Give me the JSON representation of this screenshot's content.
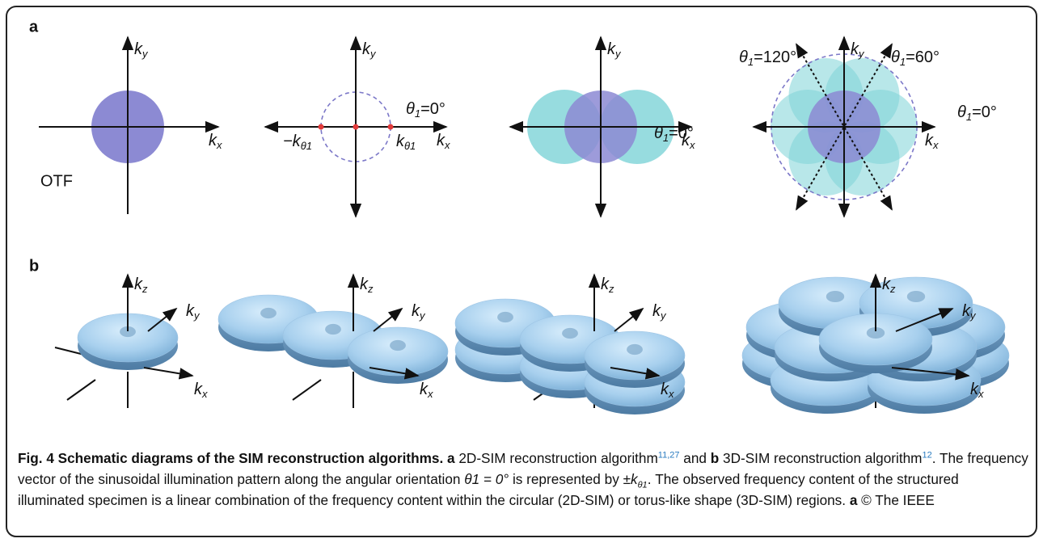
{
  "panel_a": {
    "label": "a",
    "diagrams": [
      {
        "ky": [
          "k",
          "y"
        ],
        "kx": [
          "k",
          "x"
        ],
        "note": "OTF"
      },
      {
        "ky": [
          "k",
          "y"
        ],
        "kx": [
          "k",
          "x"
        ],
        "theta": [
          "θ",
          "1",
          "=0°"
        ],
        "minus_k": [
          "−k",
          "θ1"
        ],
        "plus_k": [
          "k",
          "θ1"
        ]
      },
      {
        "ky": [
          "k",
          "y"
        ],
        "kx": [
          "k",
          "x"
        ],
        "theta": [
          "θ",
          "1",
          "=0°"
        ]
      },
      {
        "ky": [
          "k",
          "y"
        ],
        "kx": [
          "k",
          "x"
        ],
        "theta_0": [
          "θ",
          "1",
          "=0°"
        ],
        "theta_60": [
          "θ",
          "1",
          "=60°"
        ],
        "theta_120": [
          "θ",
          "1",
          "=120°"
        ]
      }
    ]
  },
  "panel_b": {
    "label": "b",
    "diagrams": [
      {
        "kz": [
          "k",
          "z"
        ],
        "ky": [
          "k",
          "y"
        ],
        "kx": [
          "k",
          "x"
        ]
      },
      {
        "kz": [
          "k",
          "z"
        ],
        "ky": [
          "k",
          "y"
        ],
        "kx": [
          "k",
          "x"
        ]
      },
      {
        "kz": [
          "k",
          "z"
        ],
        "ky": [
          "k",
          "y"
        ],
        "kx": [
          "k",
          "x"
        ]
      },
      {
        "kz": [
          "k",
          "z"
        ],
        "ky": [
          "k",
          "y"
        ],
        "kx": [
          "k",
          "x"
        ]
      }
    ]
  },
  "caption": [
    {
      "text": "Fig. 4 Schematic diagrams of the SIM reconstruction algorithms. a",
      "style": "bold"
    },
    {
      "text": " 2D-SIM reconstruction algorithm",
      "style": "normal"
    },
    {
      "text": "11,27",
      "style": "sup"
    },
    {
      "text": " and ",
      "style": "normal"
    },
    {
      "text": "b",
      "style": "bold"
    },
    {
      "text": " 3D-SIM reconstruction algorithm",
      "style": "normal"
    },
    {
      "text": "12",
      "style": "sup"
    },
    {
      "text": ". The frequency vector of the sinusoidal illumination pattern along the angular orientation ",
      "style": "normal"
    },
    {
      "text": "θ1 = 0°",
      "style": "italic"
    },
    {
      "text": " is represented by ±",
      "style": "normal"
    },
    {
      "text": "k",
      "style": "italic"
    },
    {
      "text": "θ1",
      "style": "sub"
    },
    {
      "text": ". The observed frequency content of the structured illuminated specimen is a linear combination of the frequency content within the circular (2D-SIM) or torus-like shape (3D-SIM) regions. ",
      "style": "normal"
    },
    {
      "text": "a",
      "style": "bold"
    },
    {
      "text": " © The IEEE",
      "style": "normal"
    }
  ]
}
